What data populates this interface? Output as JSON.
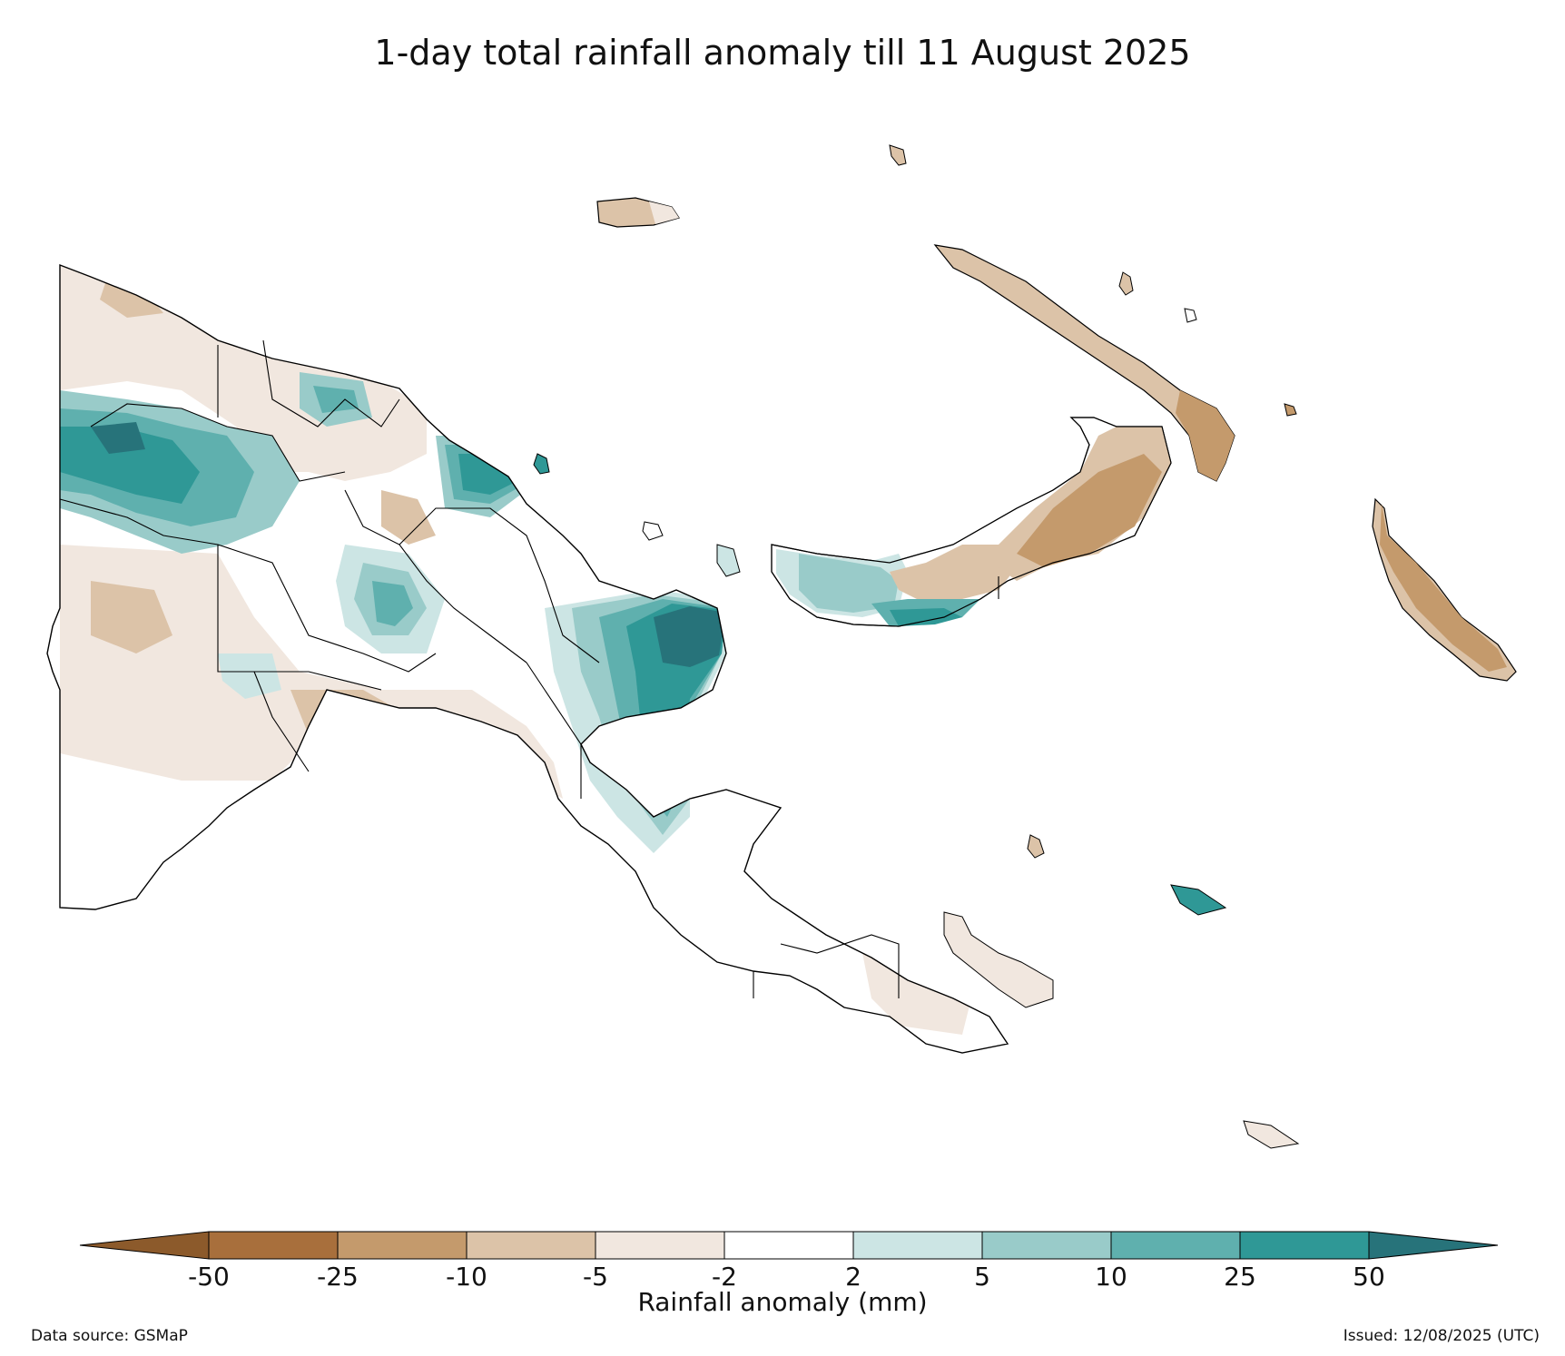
{
  "title": "1-day total rainfall anomaly till 11 August 2025",
  "colorbar": {
    "label": "Rainfall anomaly (mm)",
    "ticks": [
      "-50",
      "-25",
      "-10",
      "-5",
      "-2",
      "2",
      "5",
      "10",
      "25",
      "50"
    ],
    "colors": {
      "below_-50": "#8c5a2b",
      "-50_to_-25": "#a86f3c",
      "-25_to_-10": "#c49a6c",
      "-10_to_-5": "#dcc3a8",
      "-5_to_-2": "#f1e7df",
      "-2_to_2": "#ffffff",
      "2_to_5": "#cce5e4",
      "5_to_10": "#99cbc9",
      "10_to_25": "#5fb0ae",
      "25_to_50": "#2f9896",
      "above_50": "#27737a"
    }
  },
  "footer": {
    "data_source": "Data source: GSMaP",
    "issued": "Issued: 12/08/2025 (UTC)"
  }
}
